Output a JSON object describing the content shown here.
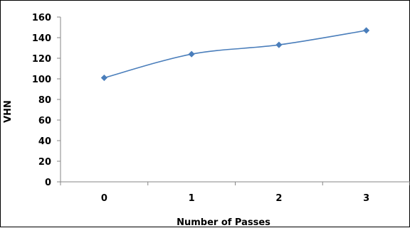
{
  "chart_data": {
    "type": "line",
    "title": "",
    "xlabel": "Number of Passes",
    "ylabel": "VHN",
    "categories": [
      "0",
      "1",
      "2",
      "3"
    ],
    "series": [
      {
        "values": [
          101,
          124,
          133,
          147
        ],
        "color": "#4a7ebb",
        "marker": "diamond",
        "smooth": true
      }
    ],
    "ylim": [
      0,
      160
    ],
    "yticks": [
      0,
      20,
      40,
      60,
      80,
      100,
      120,
      140,
      160
    ],
    "grid": false,
    "legend": "none"
  }
}
